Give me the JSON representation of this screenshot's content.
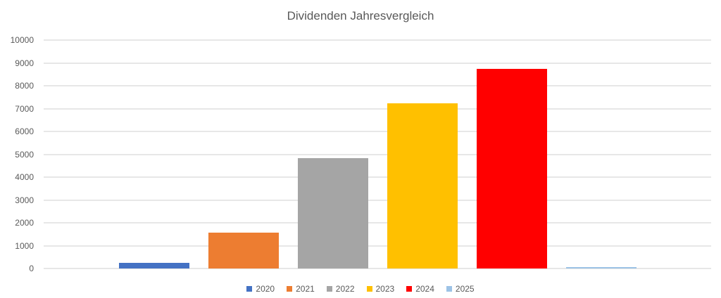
{
  "chart_data": {
    "type": "bar",
    "title": "Dividenden Jahresvergleich",
    "categories": [
      "2020",
      "2021",
      "2022",
      "2023",
      "2024",
      "2025"
    ],
    "values": [
      260,
      1570,
      4840,
      7230,
      8740,
      50
    ],
    "colors": [
      "#4472C4",
      "#ED7D31",
      "#A5A5A5",
      "#FFC000",
      "#FF0000",
      "#9DC3E6"
    ],
    "xlabel": "",
    "ylabel": "",
    "ylim": [
      0,
      10000
    ],
    "yticks": [
      0,
      1000,
      2000,
      3000,
      4000,
      5000,
      6000,
      7000,
      8000,
      9000,
      10000
    ],
    "grid": true,
    "x_axis_labels_visible": false,
    "legend": {
      "position": "bottom",
      "entries": [
        "2020",
        "2021",
        "2022",
        "2023",
        "2024",
        "2025"
      ]
    }
  },
  "style": {
    "background_color": "#FFFFFF",
    "text_color": "#595959",
    "gridline_color": "#E7E7E7"
  }
}
